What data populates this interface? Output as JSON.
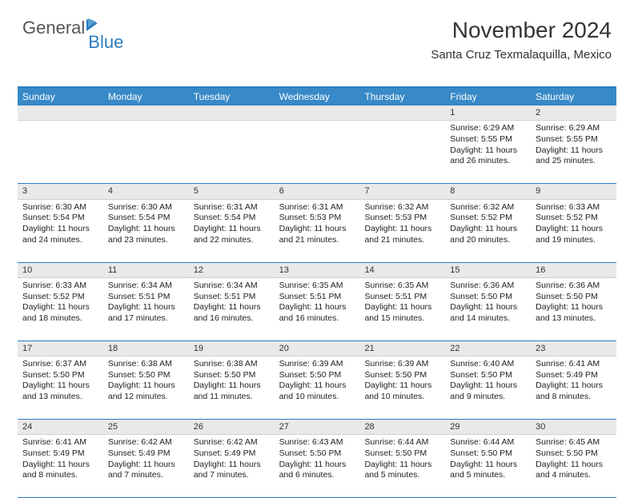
{
  "logo": {
    "word1": "General",
    "word2": "Blue"
  },
  "header": {
    "month_title": "November 2024",
    "location": "Santa Cruz Texmalaquilla, Mexico"
  },
  "colors": {
    "header_bg": "#3889c7",
    "border": "#2d7cc1",
    "daynum_bg": "#e9e9e9",
    "text": "#222222",
    "logo_gray": "#555555",
    "logo_blue": "#2d7cc1"
  },
  "day_names": [
    "Sunday",
    "Monday",
    "Tuesday",
    "Wednesday",
    "Thursday",
    "Friday",
    "Saturday"
  ],
  "weeks": [
    {
      "nums": [
        "",
        "",
        "",
        "",
        "",
        "1",
        "2"
      ],
      "cells": [
        {
          "sunrise": "",
          "sunset": "",
          "daylight": ""
        },
        {
          "sunrise": "",
          "sunset": "",
          "daylight": ""
        },
        {
          "sunrise": "",
          "sunset": "",
          "daylight": ""
        },
        {
          "sunrise": "",
          "sunset": "",
          "daylight": ""
        },
        {
          "sunrise": "",
          "sunset": "",
          "daylight": ""
        },
        {
          "sunrise": "Sunrise: 6:29 AM",
          "sunset": "Sunset: 5:55 PM",
          "daylight": "Daylight: 11 hours and 26 minutes."
        },
        {
          "sunrise": "Sunrise: 6:29 AM",
          "sunset": "Sunset: 5:55 PM",
          "daylight": "Daylight: 11 hours and 25 minutes."
        }
      ]
    },
    {
      "nums": [
        "3",
        "4",
        "5",
        "6",
        "7",
        "8",
        "9"
      ],
      "cells": [
        {
          "sunrise": "Sunrise: 6:30 AM",
          "sunset": "Sunset: 5:54 PM",
          "daylight": "Daylight: 11 hours and 24 minutes."
        },
        {
          "sunrise": "Sunrise: 6:30 AM",
          "sunset": "Sunset: 5:54 PM",
          "daylight": "Daylight: 11 hours and 23 minutes."
        },
        {
          "sunrise": "Sunrise: 6:31 AM",
          "sunset": "Sunset: 5:54 PM",
          "daylight": "Daylight: 11 hours and 22 minutes."
        },
        {
          "sunrise": "Sunrise: 6:31 AM",
          "sunset": "Sunset: 5:53 PM",
          "daylight": "Daylight: 11 hours and 21 minutes."
        },
        {
          "sunrise": "Sunrise: 6:32 AM",
          "sunset": "Sunset: 5:53 PM",
          "daylight": "Daylight: 11 hours and 21 minutes."
        },
        {
          "sunrise": "Sunrise: 6:32 AM",
          "sunset": "Sunset: 5:52 PM",
          "daylight": "Daylight: 11 hours and 20 minutes."
        },
        {
          "sunrise": "Sunrise: 6:33 AM",
          "sunset": "Sunset: 5:52 PM",
          "daylight": "Daylight: 11 hours and 19 minutes."
        }
      ]
    },
    {
      "nums": [
        "10",
        "11",
        "12",
        "13",
        "14",
        "15",
        "16"
      ],
      "cells": [
        {
          "sunrise": "Sunrise: 6:33 AM",
          "sunset": "Sunset: 5:52 PM",
          "daylight": "Daylight: 11 hours and 18 minutes."
        },
        {
          "sunrise": "Sunrise: 6:34 AM",
          "sunset": "Sunset: 5:51 PM",
          "daylight": "Daylight: 11 hours and 17 minutes."
        },
        {
          "sunrise": "Sunrise: 6:34 AM",
          "sunset": "Sunset: 5:51 PM",
          "daylight": "Daylight: 11 hours and 16 minutes."
        },
        {
          "sunrise": "Sunrise: 6:35 AM",
          "sunset": "Sunset: 5:51 PM",
          "daylight": "Daylight: 11 hours and 16 minutes."
        },
        {
          "sunrise": "Sunrise: 6:35 AM",
          "sunset": "Sunset: 5:51 PM",
          "daylight": "Daylight: 11 hours and 15 minutes."
        },
        {
          "sunrise": "Sunrise: 6:36 AM",
          "sunset": "Sunset: 5:50 PM",
          "daylight": "Daylight: 11 hours and 14 minutes."
        },
        {
          "sunrise": "Sunrise: 6:36 AM",
          "sunset": "Sunset: 5:50 PM",
          "daylight": "Daylight: 11 hours and 13 minutes."
        }
      ]
    },
    {
      "nums": [
        "17",
        "18",
        "19",
        "20",
        "21",
        "22",
        "23"
      ],
      "cells": [
        {
          "sunrise": "Sunrise: 6:37 AM",
          "sunset": "Sunset: 5:50 PM",
          "daylight": "Daylight: 11 hours and 13 minutes."
        },
        {
          "sunrise": "Sunrise: 6:38 AM",
          "sunset": "Sunset: 5:50 PM",
          "daylight": "Daylight: 11 hours and 12 minutes."
        },
        {
          "sunrise": "Sunrise: 6:38 AM",
          "sunset": "Sunset: 5:50 PM",
          "daylight": "Daylight: 11 hours and 11 minutes."
        },
        {
          "sunrise": "Sunrise: 6:39 AM",
          "sunset": "Sunset: 5:50 PM",
          "daylight": "Daylight: 11 hours and 10 minutes."
        },
        {
          "sunrise": "Sunrise: 6:39 AM",
          "sunset": "Sunset: 5:50 PM",
          "daylight": "Daylight: 11 hours and 10 minutes."
        },
        {
          "sunrise": "Sunrise: 6:40 AM",
          "sunset": "Sunset: 5:50 PM",
          "daylight": "Daylight: 11 hours and 9 minutes."
        },
        {
          "sunrise": "Sunrise: 6:41 AM",
          "sunset": "Sunset: 5:49 PM",
          "daylight": "Daylight: 11 hours and 8 minutes."
        }
      ]
    },
    {
      "nums": [
        "24",
        "25",
        "26",
        "27",
        "28",
        "29",
        "30"
      ],
      "cells": [
        {
          "sunrise": "Sunrise: 6:41 AM",
          "sunset": "Sunset: 5:49 PM",
          "daylight": "Daylight: 11 hours and 8 minutes."
        },
        {
          "sunrise": "Sunrise: 6:42 AM",
          "sunset": "Sunset: 5:49 PM",
          "daylight": "Daylight: 11 hours and 7 minutes."
        },
        {
          "sunrise": "Sunrise: 6:42 AM",
          "sunset": "Sunset: 5:49 PM",
          "daylight": "Daylight: 11 hours and 7 minutes."
        },
        {
          "sunrise": "Sunrise: 6:43 AM",
          "sunset": "Sunset: 5:50 PM",
          "daylight": "Daylight: 11 hours and 6 minutes."
        },
        {
          "sunrise": "Sunrise: 6:44 AM",
          "sunset": "Sunset: 5:50 PM",
          "daylight": "Daylight: 11 hours and 5 minutes."
        },
        {
          "sunrise": "Sunrise: 6:44 AM",
          "sunset": "Sunset: 5:50 PM",
          "daylight": "Daylight: 11 hours and 5 minutes."
        },
        {
          "sunrise": "Sunrise: 6:45 AM",
          "sunset": "Sunset: 5:50 PM",
          "daylight": "Daylight: 11 hours and 4 minutes."
        }
      ]
    }
  ]
}
